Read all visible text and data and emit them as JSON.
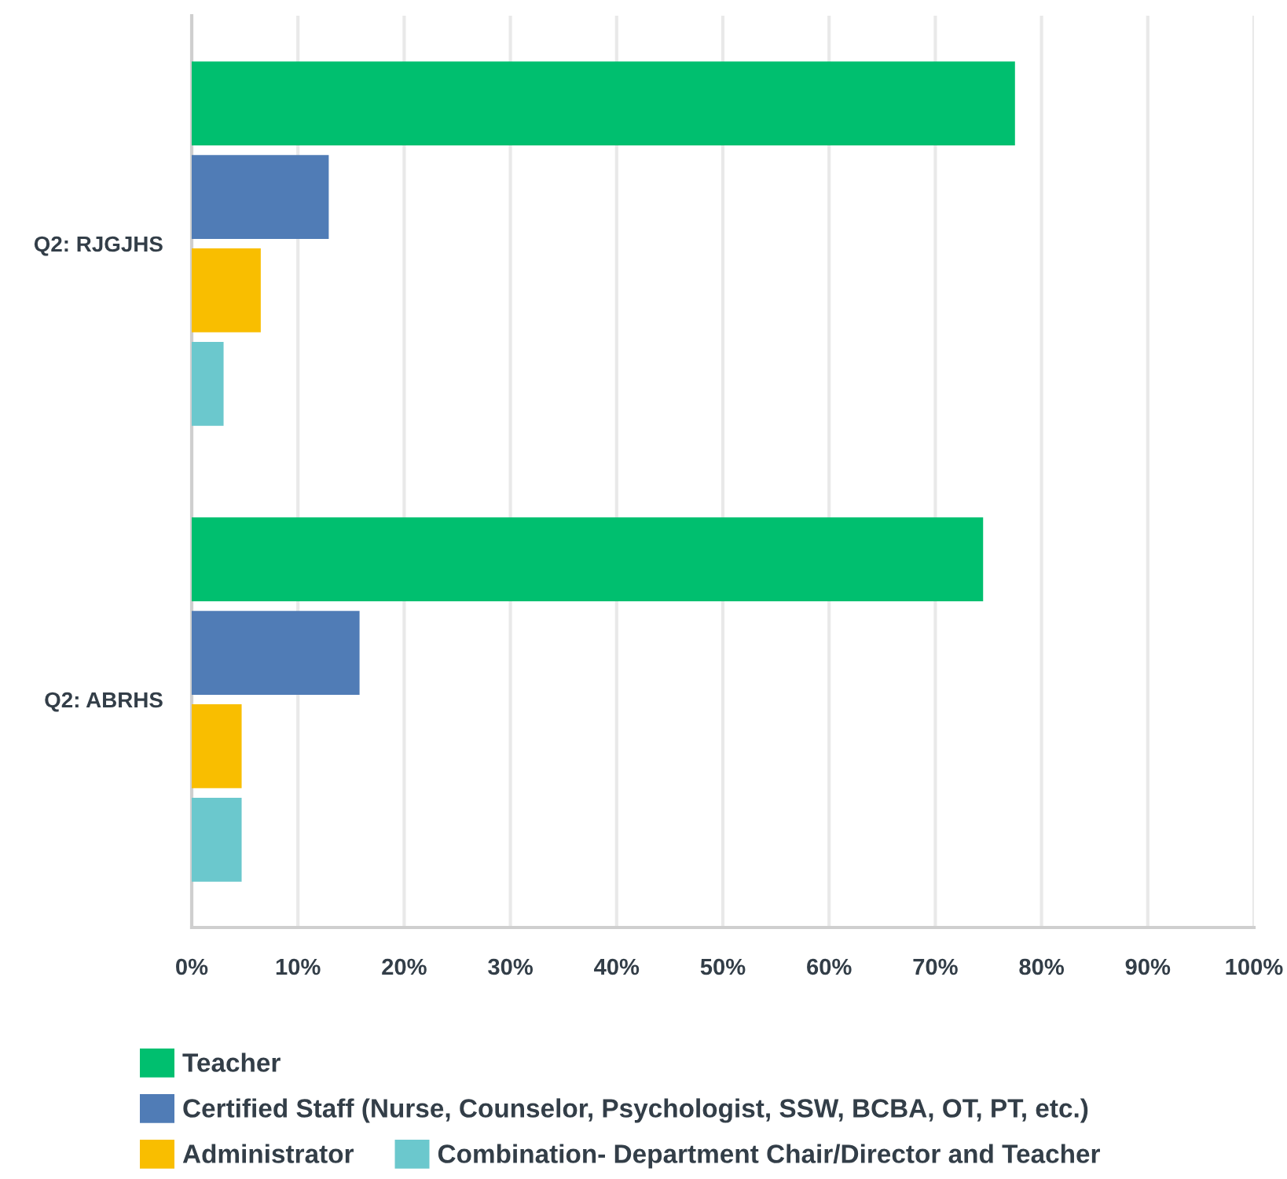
{
  "chart_data": {
    "type": "bar",
    "orientation": "horizontal",
    "categories": [
      "Q2: RJGJHS",
      "Q2: ABRHS"
    ],
    "series": [
      {
        "name": "Teacher",
        "color": "#00bf6f",
        "values": [
          77.5,
          74.5
        ]
      },
      {
        "name": "Certified Staff (Nurse, Counselor, Psychologist, SSW, BCBA, OT, PT, etc.)",
        "color": "#507cb6",
        "values": [
          12.9,
          15.8
        ]
      },
      {
        "name": "Administrator",
        "color": "#f9be00",
        "values": [
          6.5,
          4.7
        ]
      },
      {
        "name": "Combination- Department Chair/Director and Teacher",
        "color": "#6bc8cd",
        "values": [
          3.0,
          4.7
        ]
      }
    ],
    "xlim": [
      0,
      100
    ],
    "xticks": [
      {
        "value": 0,
        "label": "0%"
      },
      {
        "value": 10,
        "label": "10%"
      },
      {
        "value": 20,
        "label": "20%"
      },
      {
        "value": 30,
        "label": "30%"
      },
      {
        "value": 40,
        "label": "40%"
      },
      {
        "value": 50,
        "label": "50%"
      },
      {
        "value": 60,
        "label": "60%"
      },
      {
        "value": 70,
        "label": "70%"
      },
      {
        "value": 80,
        "label": "80%"
      },
      {
        "value": 90,
        "label": "90%"
      },
      {
        "value": 100,
        "label": "100%"
      }
    ],
    "grid": "x",
    "legend": "bottom"
  }
}
